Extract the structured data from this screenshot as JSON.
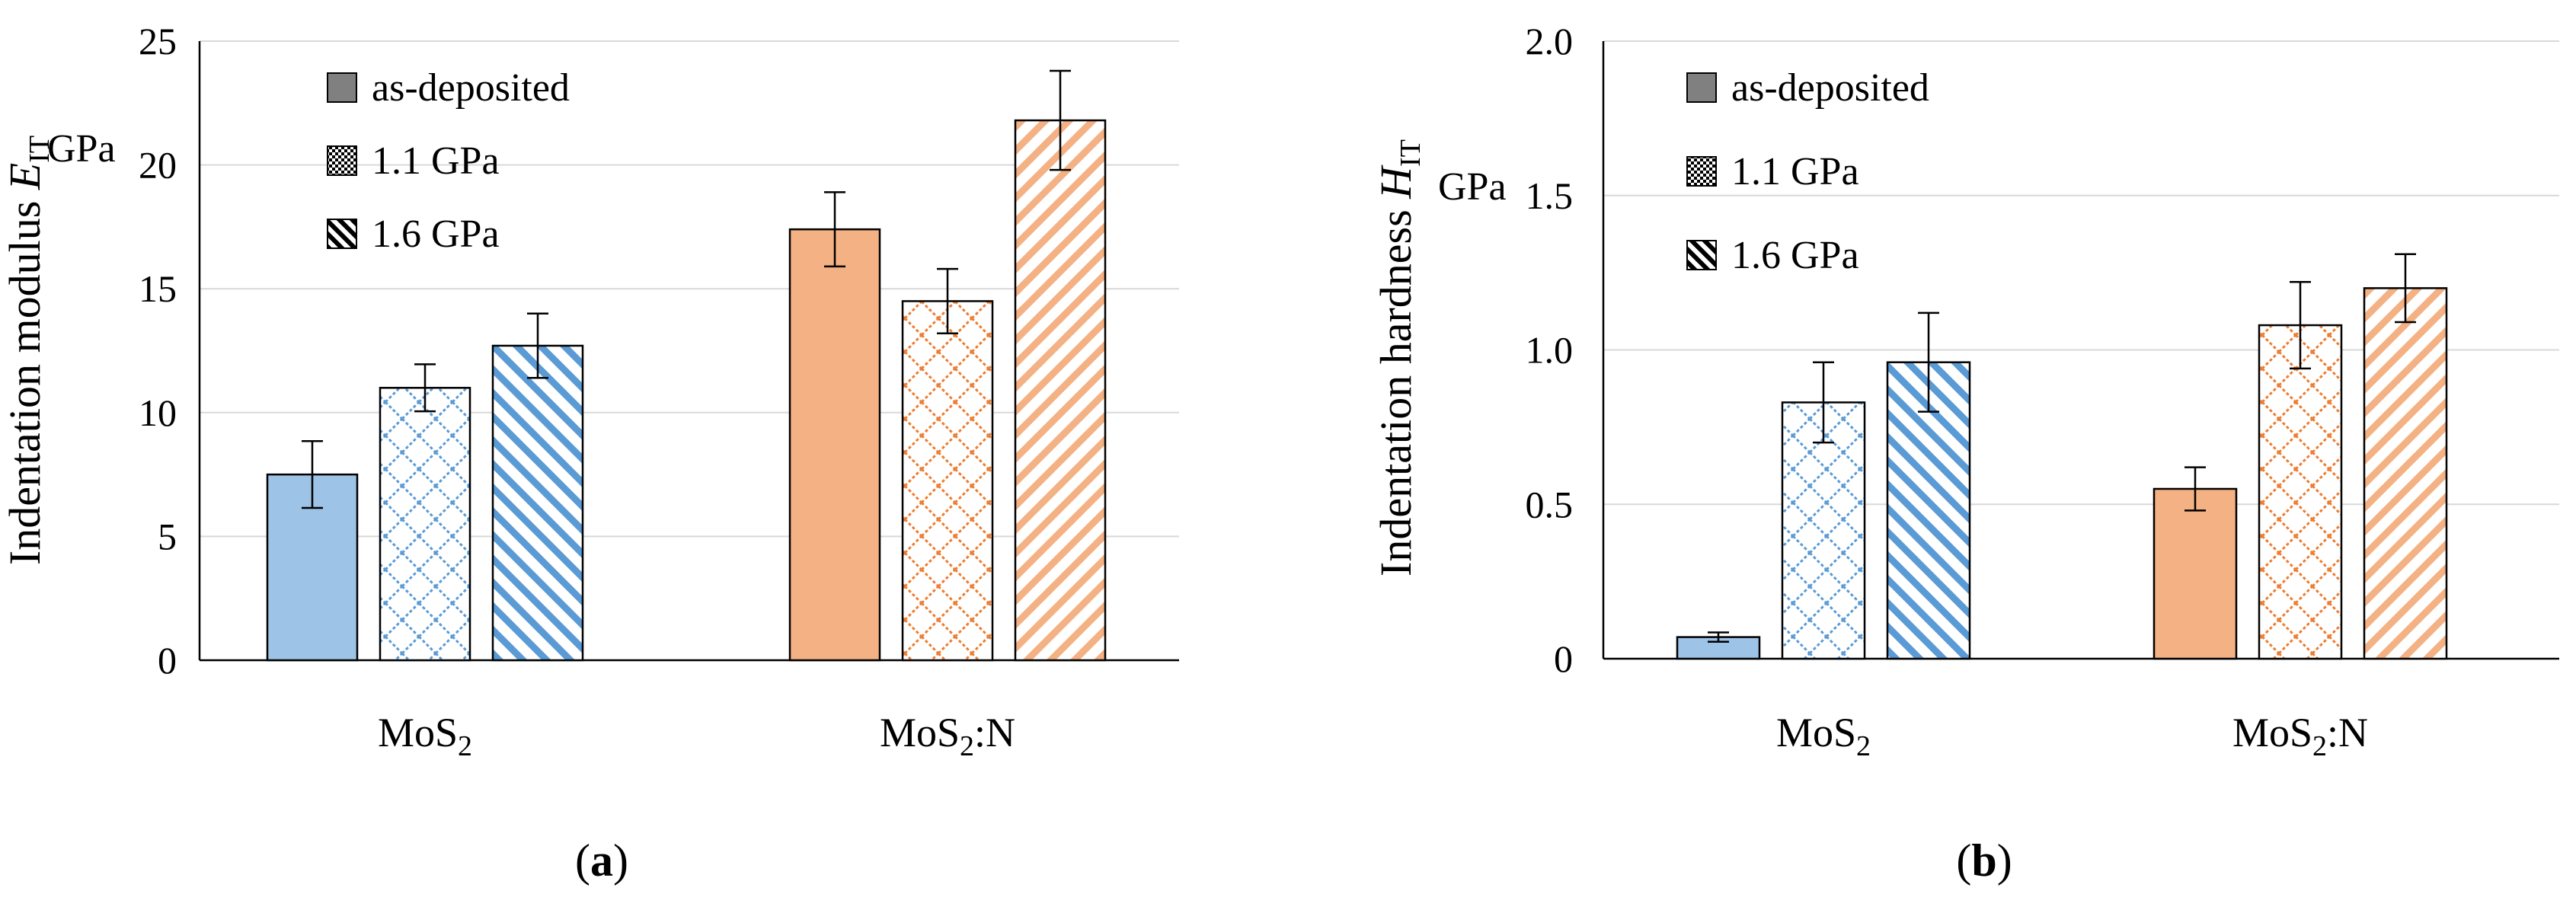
{
  "chart_data": [
    {
      "type": "bar",
      "panel_label": "(a)",
      "categories": [
        "MoS2",
        "MoS2:N"
      ],
      "category_labels": [
        {
          "main": "MoS",
          "sub": "2",
          "suffix": ""
        },
        {
          "main": "MoS",
          "sub": "2",
          "suffix": ":N"
        }
      ],
      "ylabel": {
        "main": "Indentation modulus ",
        "var": "E",
        "sub": "IT"
      },
      "unit": "GPa",
      "ylim": [
        0,
        25
      ],
      "yticks": [
        0,
        5,
        10,
        15,
        20,
        25
      ],
      "ytick_labels": [
        "0",
        "5",
        "10",
        "15",
        "20",
        "25"
      ],
      "grid": true,
      "legend_position": "top-left",
      "legend": [
        "as-deposited",
        "1.1 GPa",
        "1.6 GPa"
      ],
      "series": [
        {
          "name": "as-deposited",
          "values": [
            7.5,
            17.4
          ],
          "errors": [
            1.35,
            1.5
          ]
        },
        {
          "name": "1.1 GPa",
          "values": [
            11.0,
            14.5
          ],
          "errors": [
            0.95,
            1.3
          ]
        },
        {
          "name": "1.6 GPa",
          "values": [
            12.7,
            21.8
          ],
          "errors": [
            1.3,
            2.0
          ]
        }
      ]
    },
    {
      "type": "bar",
      "panel_label": "(b)",
      "categories": [
        "MoS2",
        "MoS2:N"
      ],
      "category_labels": [
        {
          "main": "MoS",
          "sub": "2",
          "suffix": ""
        },
        {
          "main": "MoS",
          "sub": "2",
          "suffix": ":N"
        }
      ],
      "ylabel": {
        "main": "Indentation hardness ",
        "var": "H",
        "sub": "IT"
      },
      "unit": "GPa",
      "ylim": [
        0,
        2.0
      ],
      "yticks": [
        0,
        0.5,
        1.0,
        1.5,
        2.0
      ],
      "ytick_labels": [
        "0",
        "0.5",
        "1.0",
        "1.5",
        "2.0"
      ],
      "grid": true,
      "legend_position": "top-left",
      "legend": [
        "as-deposited",
        "1.1 GPa",
        "1.6 GPa"
      ],
      "series": [
        {
          "name": "as-deposited",
          "values": [
            0.07,
            0.55
          ],
          "errors": [
            0.015,
            0.07
          ]
        },
        {
          "name": "1.1 GPa",
          "values": [
            0.83,
            1.08
          ],
          "errors": [
            0.13,
            0.14
          ]
        },
        {
          "name": "1.6 GPa",
          "values": [
            0.96,
            1.2
          ],
          "errors": [
            0.16,
            0.11
          ]
        }
      ]
    }
  ],
  "colors": {
    "MoS2": "#9dc3e6",
    "MoS2_pattern": "#5b9bd5",
    "MoS2N": "#f4b183",
    "MoS2N_pattern": "#ed7d31",
    "legend_gray": "#808080",
    "grid": "#d9d9d9"
  }
}
